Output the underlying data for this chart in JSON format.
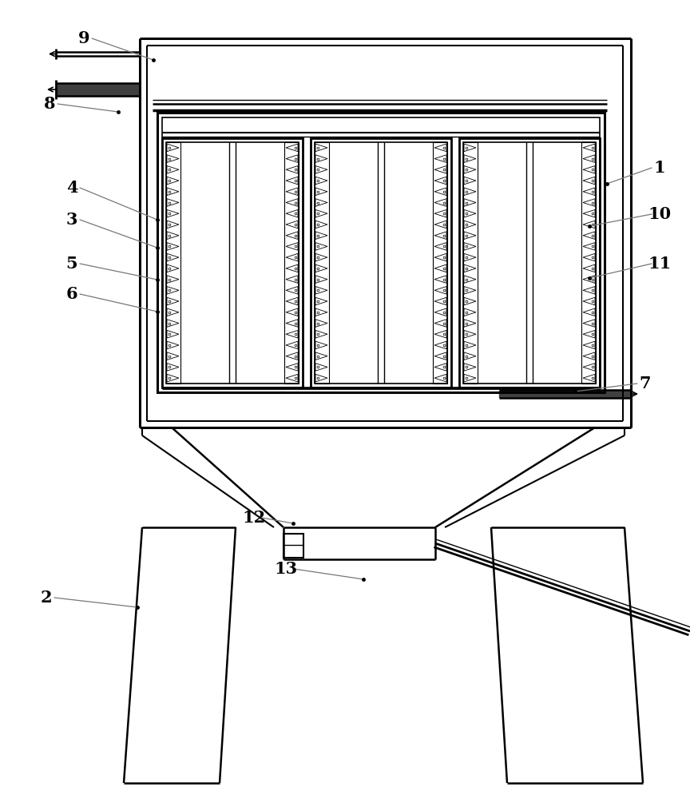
{
  "bg_color": "#ffffff",
  "lc": "#000000",
  "gray_line": "#999999",
  "plate_groups": 3,
  "n_fins": 22,
  "labels": [
    [
      "9",
      105,
      48,
      192,
      75,
      true
    ],
    [
      "8",
      62,
      130,
      148,
      140,
      true
    ],
    [
      "4",
      90,
      235,
      197,
      275,
      true
    ],
    [
      "3",
      90,
      275,
      197,
      310,
      true
    ],
    [
      "5",
      90,
      330,
      197,
      350,
      true
    ],
    [
      "6",
      90,
      368,
      197,
      390,
      true
    ],
    [
      "1",
      826,
      210,
      760,
      230,
      false
    ],
    [
      "10",
      826,
      268,
      738,
      283,
      false
    ],
    [
      "11",
      826,
      330,
      738,
      348,
      false
    ],
    [
      "7",
      808,
      480,
      720,
      490,
      false
    ],
    [
      "2",
      58,
      748,
      172,
      760,
      true
    ],
    [
      "12",
      318,
      648,
      367,
      655,
      true
    ],
    [
      "13",
      358,
      712,
      455,
      725,
      true
    ]
  ]
}
